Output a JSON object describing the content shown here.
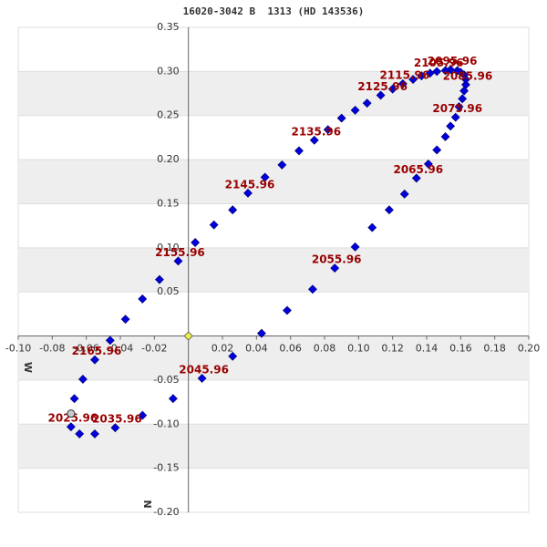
{
  "chart_data": {
    "type": "scatter",
    "title": "16020-3042 B  1313 (HD 143536)",
    "xlabel": "W",
    "ylabel": "N",
    "xlim": [
      -0.1,
      0.2
    ],
    "ylim": [
      -0.2,
      0.35
    ],
    "xticks": [
      {
        "value": -0.1,
        "label": "-0.10"
      },
      {
        "value": -0.08,
        "label": "-0.08"
      },
      {
        "value": -0.06,
        "label": "-0.06"
      },
      {
        "value": -0.04,
        "label": "-0.04"
      },
      {
        "value": -0.02,
        "label": "-0.02"
      },
      {
        "value": 0.02,
        "label": "0.02"
      },
      {
        "value": 0.04,
        "label": "0.04"
      },
      {
        "value": 0.06,
        "label": "0.06"
      },
      {
        "value": 0.08,
        "label": "0.08"
      },
      {
        "value": 0.1,
        "label": "0.10"
      },
      {
        "value": 0.12,
        "label": "0.12"
      },
      {
        "value": 0.14,
        "label": "0.14"
      },
      {
        "value": 0.16,
        "label": "0.16"
      },
      {
        "value": 0.18,
        "label": "0.18"
      },
      {
        "value": 0.2,
        "label": "0.20"
      }
    ],
    "yticks": [
      {
        "value": 0.35,
        "label": "0.35"
      },
      {
        "value": 0.3,
        "label": "0.30"
      },
      {
        "value": 0.25,
        "label": "0.25"
      },
      {
        "value": 0.2,
        "label": "0.20"
      },
      {
        "value": 0.15,
        "label": "0.15"
      },
      {
        "value": 0.1,
        "label": "0.10"
      },
      {
        "value": 0.05,
        "label": "0.05"
      },
      {
        "value": -0.05,
        "label": "-0.05"
      },
      {
        "value": -0.1,
        "label": "-0.10"
      },
      {
        "value": -0.15,
        "label": "-0.15"
      },
      {
        "value": -0.2,
        "label": "-0.20"
      }
    ],
    "color": "#0000dd",
    "x": [
      0.008,
      0.026,
      0.043,
      0.058,
      0.073,
      0.086,
      0.098,
      0.108,
      0.118,
      0.127,
      0.134,
      0.141,
      0.146,
      0.151,
      0.154,
      0.157,
      0.159,
      0.161,
      0.162,
      0.163,
      0.163,
      0.162,
      0.16,
      0.158,
      0.154,
      0.151,
      0.146,
      0.142,
      0.137,
      0.132,
      0.126,
      0.12,
      0.113,
      0.105,
      0.098,
      0.09,
      0.082,
      0.074,
      0.065,
      0.055,
      0.045,
      0.035,
      0.026,
      0.015,
      0.004,
      -0.006,
      -0.017,
      -0.027,
      -0.037,
      -0.046,
      -0.055,
      -0.062,
      -0.067,
      -0.069,
      -0.064,
      -0.055,
      -0.043,
      -0.027,
      -0.009
    ],
    "y": [
      -0.048,
      -0.023,
      0.003,
      0.029,
      0.053,
      0.077,
      0.101,
      0.123,
      0.143,
      0.161,
      0.179,
      0.195,
      0.211,
      0.226,
      0.238,
      0.248,
      0.26,
      0.269,
      0.278,
      0.285,
      0.291,
      0.296,
      0.299,
      0.301,
      0.302,
      0.301,
      0.3,
      0.298,
      0.295,
      0.291,
      0.286,
      0.28,
      0.273,
      0.264,
      0.256,
      0.247,
      0.234,
      0.222,
      0.21,
      0.194,
      0.18,
      0.162,
      0.143,
      0.126,
      0.106,
      0.085,
      0.064,
      0.042,
      0.019,
      -0.005,
      -0.027,
      -0.049,
      -0.071,
      -0.103,
      -0.111,
      -0.111,
      -0.104,
      -0.09,
      -0.071
    ],
    "point_labels": [
      "2045.96",
      null,
      null,
      null,
      null,
      "2055.96",
      null,
      null,
      null,
      null,
      "2065.96",
      null,
      null,
      null,
      null,
      "2075.96",
      null,
      null,
      null,
      "2085.96",
      null,
      null,
      null,
      null,
      "2095.96",
      null,
      "2105.96",
      null,
      null,
      null,
      "2115.96",
      null,
      "2125.96",
      null,
      null,
      null,
      null,
      "2135.96",
      null,
      null,
      null,
      "2145.96",
      null,
      null,
      null,
      "2155.96",
      null,
      null,
      null,
      null,
      "2165.96",
      null,
      null,
      "2025.96",
      null,
      null,
      "2035.96",
      null,
      null
    ],
    "label_color": "#990000",
    "primary": {
      "x": 0,
      "y": 0,
      "color": "#eeee44"
    },
    "highlight": {
      "x": -0.069,
      "y": -0.088,
      "color": "#cccccc"
    },
    "bands": true
  }
}
